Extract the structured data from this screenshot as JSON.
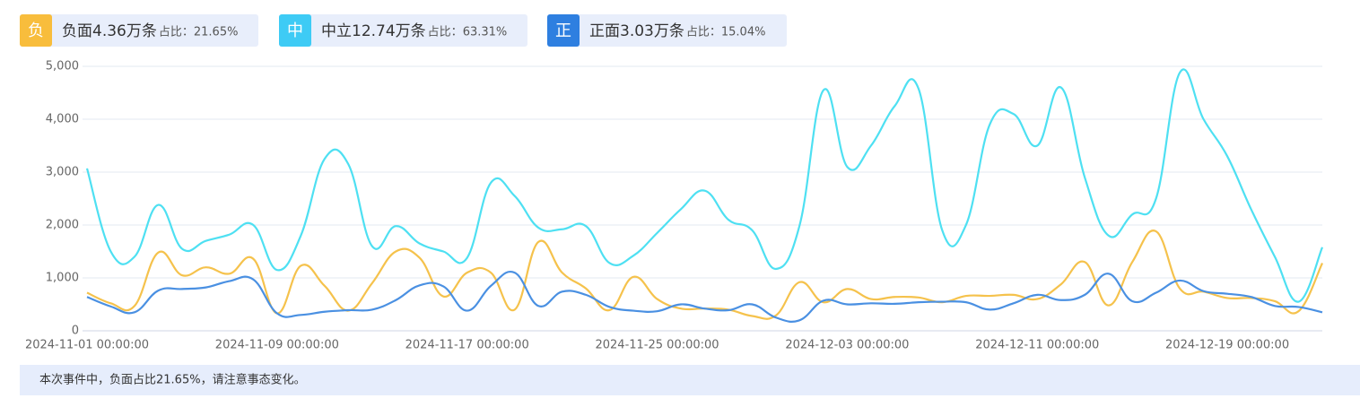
{
  "chart_data": {
    "type": "line",
    "categories": [
      "2024-11-01 00:00:00",
      null,
      null,
      null,
      null,
      null,
      null,
      null,
      "2024-11-09 00:00:00",
      null,
      null,
      null,
      null,
      null,
      null,
      null,
      "2024-11-17 00:00:00",
      null,
      null,
      null,
      null,
      null,
      null,
      null,
      "2024-11-25 00:00:00",
      null,
      null,
      null,
      null,
      null,
      null,
      null,
      "2024-12-03 00:00:00",
      null,
      null,
      null,
      null,
      null,
      null,
      null,
      "2024-12-11 00:00:00",
      null,
      null,
      null,
      null,
      null,
      null,
      null,
      "2024-12-19 00:00:00",
      null,
      null,
      null,
      null
    ],
    "series": [
      {
        "name": "负面4.36万条",
        "badge": "负",
        "share_label": "占比：",
        "share": "21.65%",
        "color": "#f5c24c",
        "badge_color": "#f8bd3c",
        "values": [
          720,
          520,
          470,
          1480,
          1050,
          1200,
          1080,
          1360,
          330,
          1230,
          850,
          380,
          900,
          1500,
          1380,
          650,
          1100,
          1100,
          400,
          1680,
          1100,
          800,
          390,
          1020,
          600,
          420,
          420,
          400,
          280,
          290,
          920,
          540,
          790,
          600,
          640,
          630,
          540,
          660,
          660,
          680,
          600,
          880,
          1300,
          480,
          1300,
          1880,
          800,
          740,
          620,
          620,
          560,
          370,
          1280
        ]
      },
      {
        "name": "中立12.74万条",
        "badge": "中",
        "share_label": "占比：",
        "share": "63.31%",
        "color": "#4ee0f2",
        "badge_color": "#3ecbf5",
        "values": [
          3070,
          1500,
          1400,
          2380,
          1550,
          1700,
          1820,
          2000,
          1150,
          1800,
          3250,
          3150,
          1600,
          1980,
          1650,
          1500,
          1380,
          2800,
          2550,
          1950,
          1920,
          1980,
          1280,
          1420,
          1850,
          2300,
          2650,
          2100,
          1900,
          1170,
          2000,
          4550,
          3100,
          3500,
          4250,
          4580,
          1900,
          2000,
          3900,
          4100,
          3500,
          4600,
          2900,
          1800,
          2200,
          2500,
          4880,
          4000,
          3300,
          2300,
          1400,
          550,
          1580
        ]
      },
      {
        "name": "正面3.03万条",
        "badge": "正",
        "share_label": "占比：",
        "share": "15.04%",
        "color": "#4a90e2",
        "badge_color": "#2e7fe0",
        "values": [
          640,
          460,
          350,
          760,
          790,
          820,
          940,
          970,
          330,
          300,
          360,
          390,
          400,
          580,
          860,
          840,
          380,
          850,
          1100,
          470,
          740,
          680,
          450,
          380,
          370,
          500,
          420,
          390,
          500,
          250,
          200,
          570,
          500,
          520,
          510,
          540,
          550,
          540,
          400,
          520,
          680,
          580,
          680,
          1080,
          560,
          720,
          950,
          750,
          700,
          640,
          470,
          450,
          350
        ]
      }
    ],
    "ylim": [
      0,
      5000
    ],
    "yticks": [
      0,
      {
        "value": 1000,
        "label": "1,000"
      },
      {
        "value": 2000,
        "label": "2,000"
      },
      {
        "value": 3000,
        "label": "3,000"
      },
      {
        "value": 4000,
        "label": "4,000"
      },
      {
        "value": 5000,
        "label": "5,000"
      }
    ],
    "grid": true
  },
  "note": "本次事件中，负面占比21.65%，请注意事态变化。"
}
